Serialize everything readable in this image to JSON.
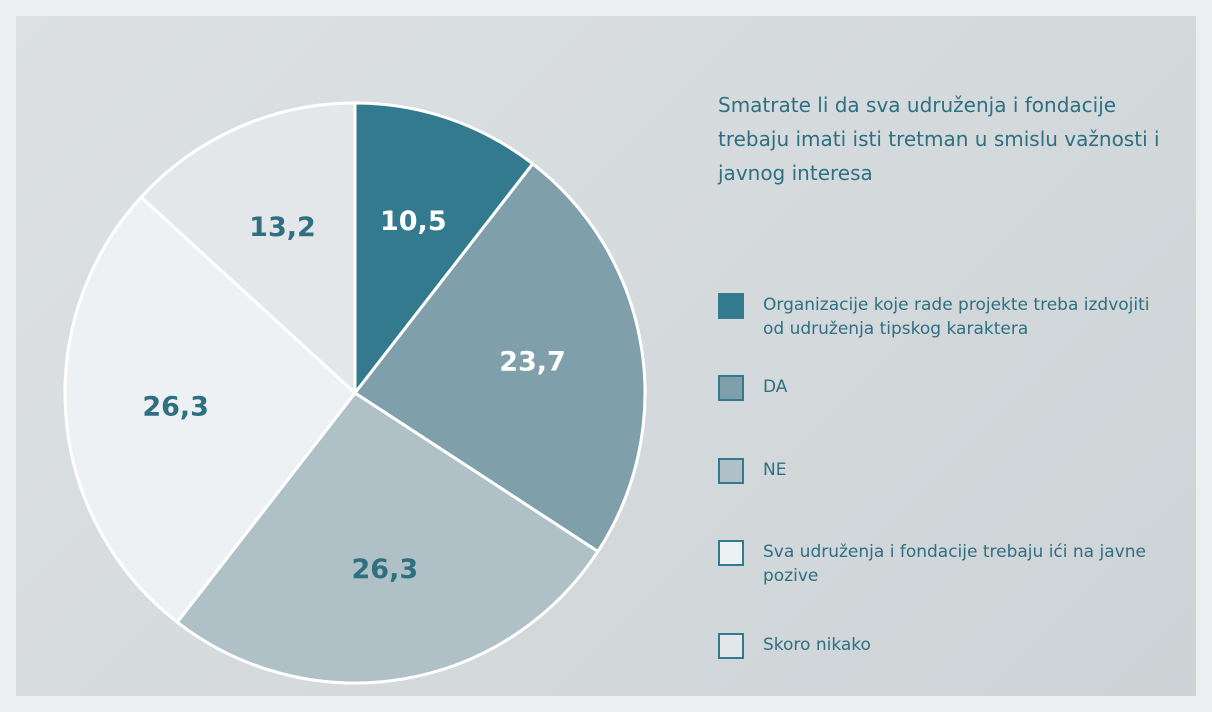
{
  "chart_data": {
    "type": "pie",
    "title": "Smatrate li da sva udruženja i fondacije trebaju imati isti tretman u smislu važnosti i javnog interesa",
    "categories": [
      "Organizacije koje rade projekte treba izdvojiti od udruženja tipskog karaktera",
      "DA",
      "NE",
      "Sva udruženja i fondacije trebaju ići na javne pozive",
      "Skoro nikako"
    ],
    "values": [
      10.5,
      23.7,
      26.3,
      26.3,
      13.2
    ],
    "value_labels": [
      "10,5",
      "23,7",
      "26,3",
      "26,3",
      "13,2"
    ],
    "colors": [
      "#347a8e",
      "#7fa0ab",
      "#afc0c6",
      "#eef1f3",
      "#e3e7e9"
    ],
    "legend": "right"
  }
}
